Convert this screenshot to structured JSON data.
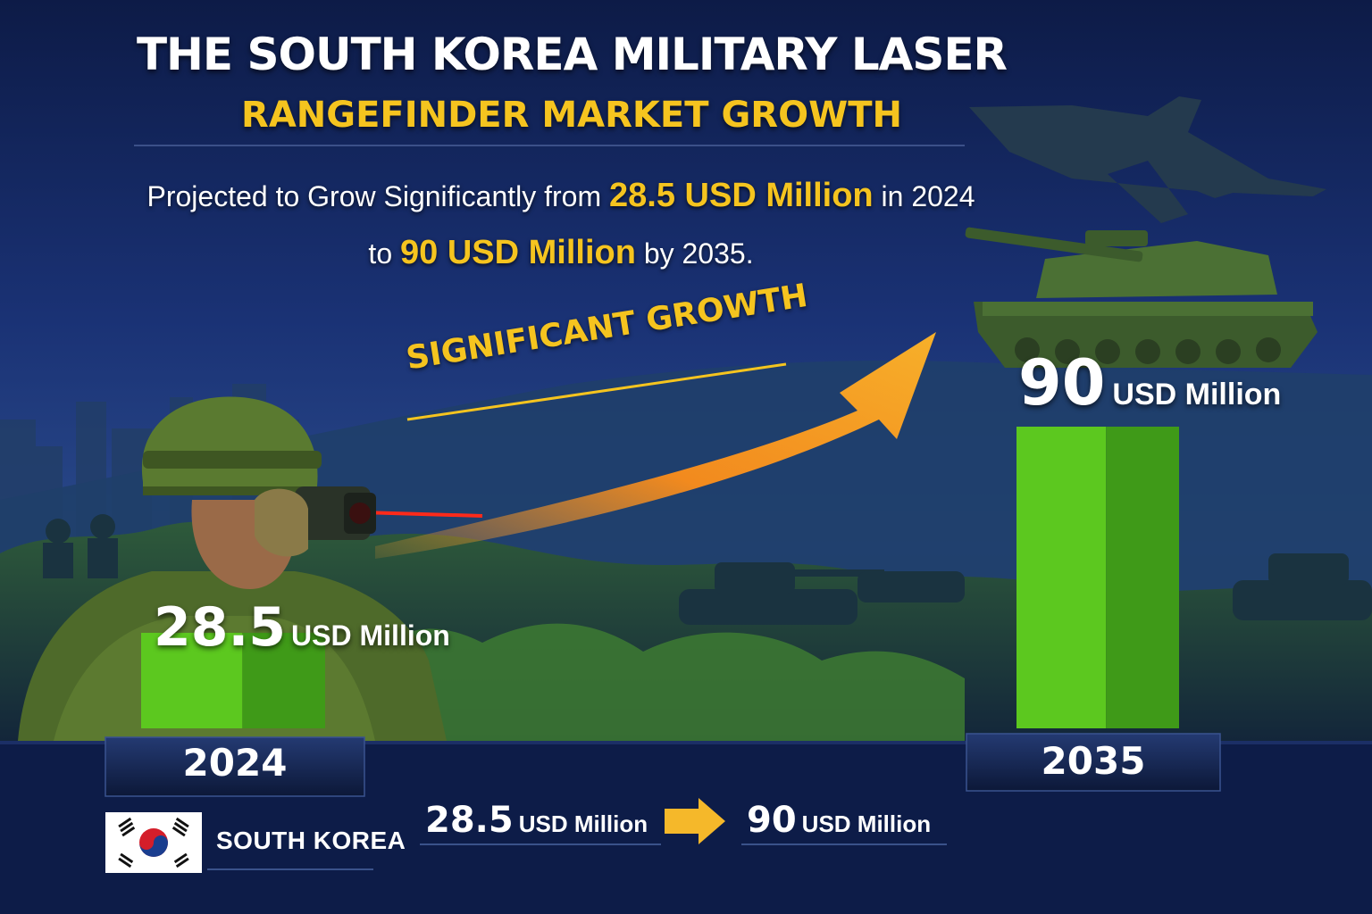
{
  "title": {
    "line1": "THE SOUTH KOREA MILITARY LASER",
    "line2": "RANGEFINDER MARKET GROWTH"
  },
  "subtitle": {
    "line1_prefix": "Projected to Grow Significantly from ",
    "line1_highlight": "28.5 USD Million",
    "line1_suffix": " in 2024",
    "line2_prefix": "to ",
    "line2_highlight": "90 USD Million",
    "line2_suffix": " by 2035."
  },
  "growth_label": "SIGNIFICANT GROWTH",
  "region": {
    "name": "SOUTH KOREA",
    "flag_icon": "south-korea-flag-icon"
  },
  "summary": {
    "start_value": "28.5",
    "start_unit": "USD Million",
    "end_value": "90",
    "end_unit": "USD Million",
    "arrow_icon": "right-arrow-icon"
  },
  "colors": {
    "accent_yellow": "#f5c41f",
    "bar_green": "#5cc81f",
    "bar_green_dark": "#3f9a18",
    "arrow_orange": "#f58a1f",
    "laser_red": "#ff2a1a",
    "background_navy": "#0e1f4d"
  },
  "chart_data": {
    "type": "bar",
    "categories": [
      "2024",
      "2035"
    ],
    "values": [
      28.5,
      90
    ],
    "value_labels": [
      {
        "number": "28.5",
        "unit": "USD Million"
      },
      {
        "number": "90",
        "unit": "USD Million"
      }
    ],
    "title": "THE SOUTH KOREA MILITARY LASER RANGEFINDER MARKET GROWTH",
    "xlabel": "",
    "ylabel": "",
    "grid": false,
    "legend": "none"
  }
}
